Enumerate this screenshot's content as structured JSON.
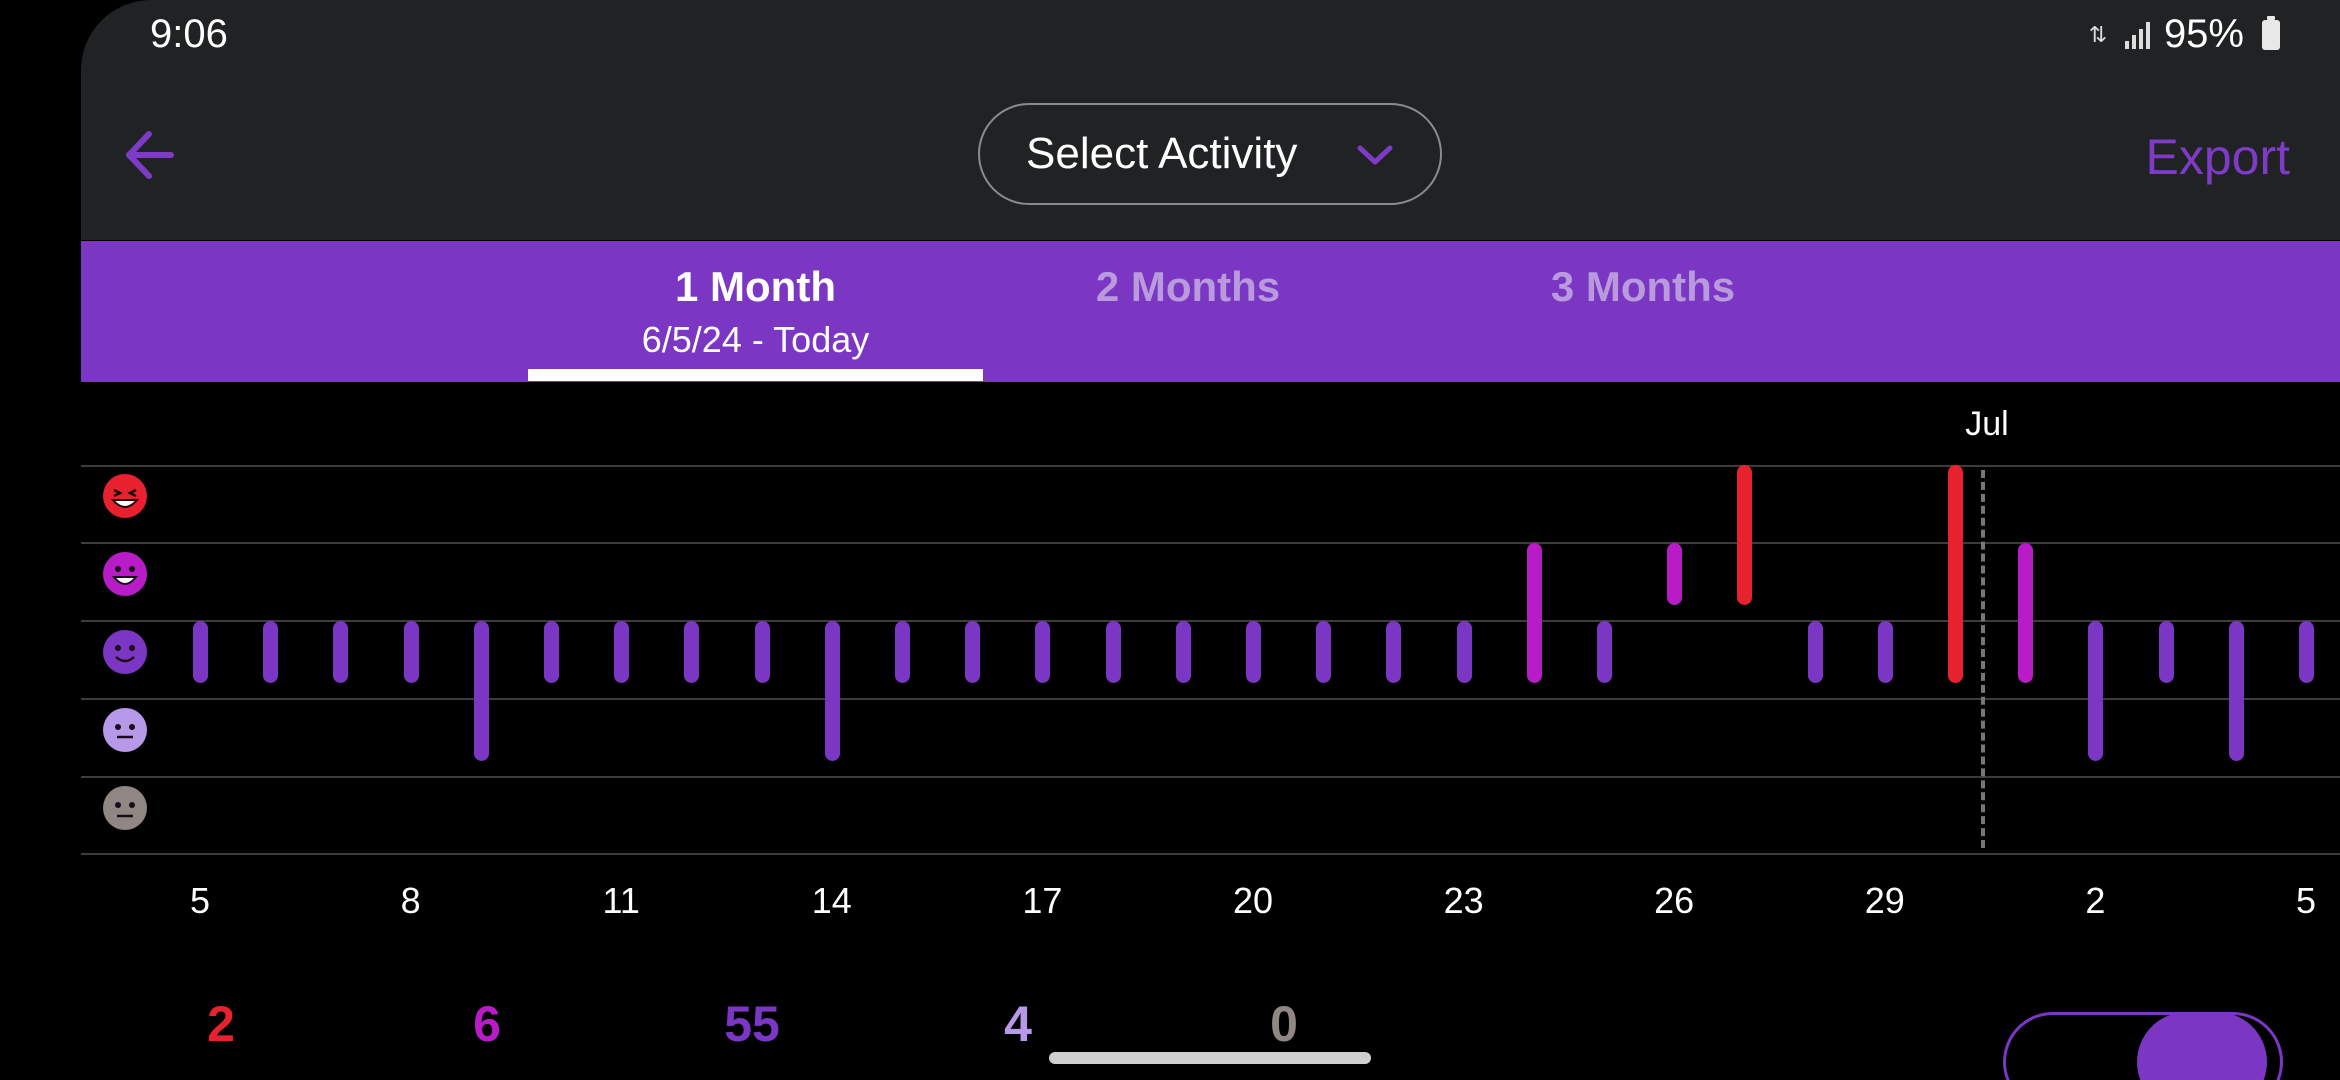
{
  "status_bar": {
    "time": "9:06",
    "battery": "95%"
  },
  "header": {
    "select_activity": "Select Activity",
    "export": "Export"
  },
  "tabs": [
    {
      "title": "1 Month",
      "subtitle": "6/5/24 - Today",
      "active": true
    },
    {
      "title": "2 Months",
      "active": false
    },
    {
      "title": "3 Months",
      "active": false
    }
  ],
  "colors": {
    "accent": "#7b37c4",
    "mood_rad": "#e8212e",
    "mood_good": "#b81cc7",
    "mood_meh": "#7b37c4",
    "mood_bad": "#b799ea",
    "mood_awful": "#8f8784"
  },
  "moods": [
    {
      "key": "rad",
      "icon": "laughing-face-icon"
    },
    {
      "key": "good",
      "icon": "smiling-face-icon"
    },
    {
      "key": "meh",
      "icon": "neutral-smile-face-icon"
    },
    {
      "key": "bad",
      "icon": "flat-face-icon"
    },
    {
      "key": "awful",
      "icon": "sad-face-icon"
    }
  ],
  "chart_data": {
    "type": "bar",
    "month_label": "Jul",
    "x_ticks": [
      "5",
      "8",
      "11",
      "14",
      "17",
      "20",
      "23",
      "26",
      "29",
      "2",
      "5"
    ],
    "y_levels": [
      "rad",
      "good",
      "meh",
      "bad",
      "awful"
    ],
    "entries": [
      {
        "day": "Jun 5",
        "moods": [
          "meh"
        ]
      },
      {
        "day": "Jun 6",
        "moods": [
          "meh"
        ]
      },
      {
        "day": "Jun 7",
        "moods": [
          "meh"
        ]
      },
      {
        "day": "Jun 8",
        "moods": [
          "meh"
        ]
      },
      {
        "day": "Jun 9",
        "moods": [
          "meh",
          "bad"
        ]
      },
      {
        "day": "Jun 10",
        "moods": [
          "meh"
        ]
      },
      {
        "day": "Jun 11",
        "moods": [
          "meh"
        ]
      },
      {
        "day": "Jun 12",
        "moods": [
          "meh"
        ]
      },
      {
        "day": "Jun 13",
        "moods": [
          "meh"
        ]
      },
      {
        "day": "Jun 14",
        "moods": [
          "meh",
          "bad"
        ]
      },
      {
        "day": "Jun 15",
        "moods": [
          "meh"
        ]
      },
      {
        "day": "Jun 16",
        "moods": [
          "meh"
        ]
      },
      {
        "day": "Jun 17",
        "moods": [
          "meh"
        ]
      },
      {
        "day": "Jun 18",
        "moods": [
          "meh"
        ]
      },
      {
        "day": "Jun 19",
        "moods": [
          "meh"
        ]
      },
      {
        "day": "Jun 20",
        "moods": [
          "meh"
        ]
      },
      {
        "day": "Jun 21",
        "moods": [
          "meh"
        ]
      },
      {
        "day": "Jun 22",
        "moods": [
          "meh"
        ]
      },
      {
        "day": "Jun 23",
        "moods": [
          "meh"
        ]
      },
      {
        "day": "Jun 24",
        "moods": [
          "good",
          "meh"
        ]
      },
      {
        "day": "Jun 25",
        "moods": [
          "meh"
        ]
      },
      {
        "day": "Jun 26",
        "moods": [
          "good"
        ]
      },
      {
        "day": "Jun 27",
        "moods": [
          "rad",
          "good"
        ]
      },
      {
        "day": "Jun 28",
        "moods": [
          "meh"
        ]
      },
      {
        "day": "Jun 29",
        "moods": [
          "meh"
        ]
      },
      {
        "day": "Jun 30",
        "moods": [
          "rad",
          "good",
          "meh"
        ]
      },
      {
        "day": "Jul 1",
        "moods": [
          "good",
          "meh"
        ]
      },
      {
        "day": "Jul 2",
        "moods": [
          "meh",
          "bad"
        ]
      },
      {
        "day": "Jul 3",
        "moods": [
          "meh"
        ]
      },
      {
        "day": "Jul 4",
        "moods": [
          "meh",
          "bad"
        ]
      },
      {
        "day": "Jul 5",
        "moods": [
          "meh"
        ]
      }
    ],
    "counts": [
      {
        "mood": "rad",
        "value": "2"
      },
      {
        "mood": "good",
        "value": "6"
      },
      {
        "mood": "meh",
        "value": "55"
      },
      {
        "mood": "bad",
        "value": "4"
      },
      {
        "mood": "awful",
        "value": "0"
      }
    ]
  }
}
